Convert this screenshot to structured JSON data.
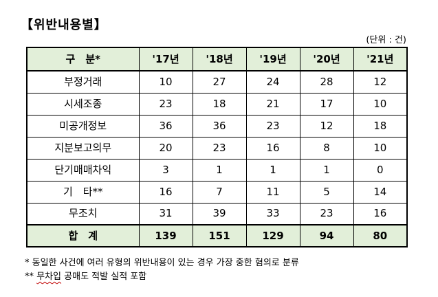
{
  "title": "【위반내용별】",
  "unit": "(단위 : 건)",
  "table": {
    "headers": [
      "구　분*",
      "'17년",
      "'18년",
      "'19년",
      "'20년",
      "'21년"
    ],
    "rows": [
      {
        "label": "부정거래",
        "values": [
          "10",
          "27",
          "24",
          "28",
          "12"
        ]
      },
      {
        "label": "시세조종",
        "values": [
          "23",
          "18",
          "21",
          "17",
          "10"
        ]
      },
      {
        "label": "미공개정보",
        "values": [
          "36",
          "36",
          "23",
          "12",
          "18"
        ]
      },
      {
        "label": "지분보고의무",
        "values": [
          "20",
          "23",
          "16",
          "8",
          "10"
        ]
      },
      {
        "label": "단기매매차익",
        "values": [
          "3",
          "1",
          "1",
          "1",
          "0"
        ]
      },
      {
        "label": "기　타**",
        "values": [
          "16",
          "7",
          "11",
          "5",
          "14"
        ]
      },
      {
        "label": "무조치",
        "values": [
          "31",
          "39",
          "33",
          "23",
          "16"
        ]
      }
    ],
    "total": {
      "label": "합　계",
      "values": [
        "139",
        "151",
        "129",
        "94",
        "80"
      ]
    }
  },
  "notes": {
    "note1": " * 동일한 사건에 여러 유형의 위반내용이 있는 경우 가장 중한 혐의로 분류",
    "note2_prefix": "** ",
    "note2_underlined": "무차입",
    "note2_rest": " 공매도 적발 실적 포함"
  }
}
